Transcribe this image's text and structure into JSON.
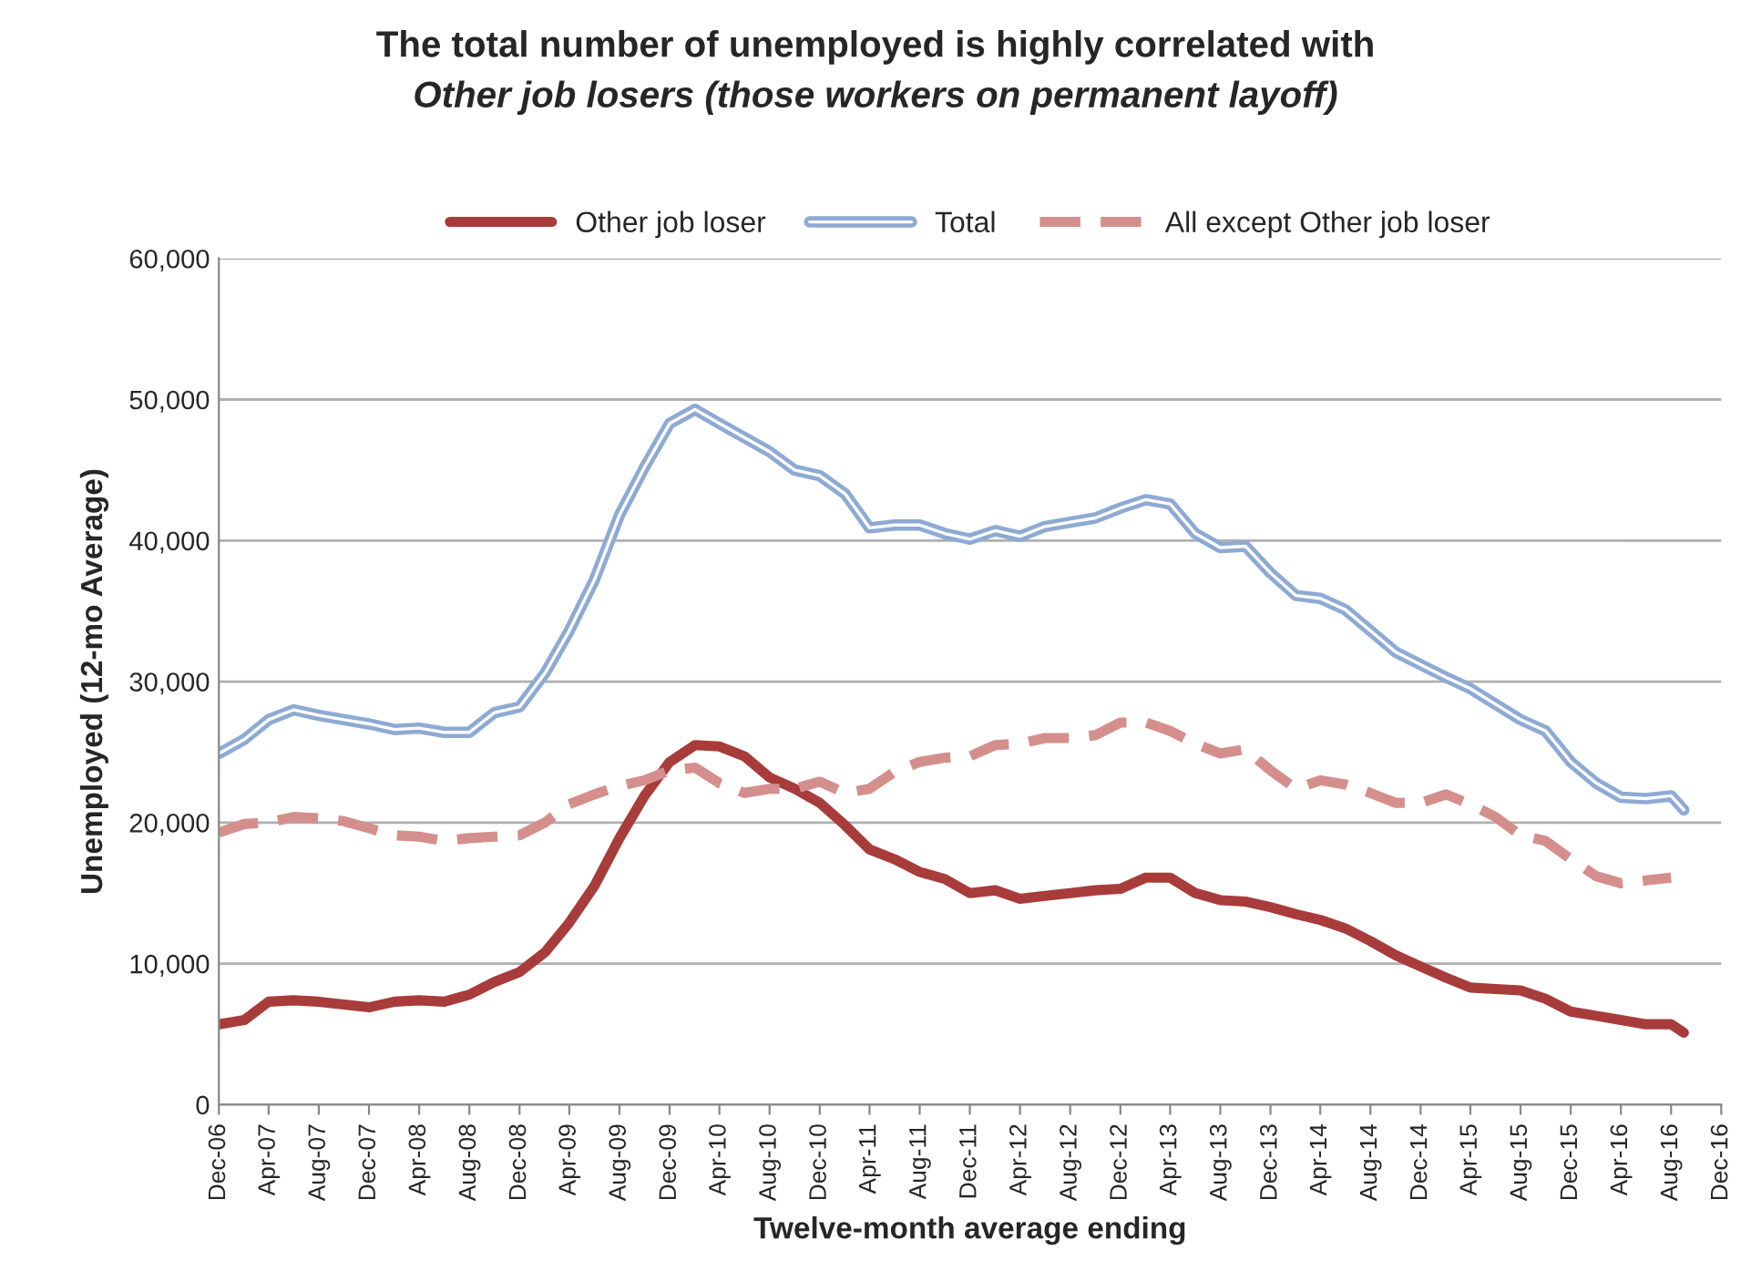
{
  "chart_data": {
    "type": "line",
    "title": "The total number of unemployed is highly correlated with",
    "subtitle": "Other job losers (those workers on permanent layoff)",
    "xlabel": "Twelve-month average ending",
    "ylabel": "Unemployed (12-mo Average)",
    "series": [
      {
        "name": "Other job loser",
        "color": "#a83c3a",
        "line_style": "solid",
        "x": [
          "2006-12",
          "2007-02",
          "2007-04",
          "2007-06",
          "2007-08",
          "2007-10",
          "2007-12",
          "2008-02",
          "2008-04",
          "2008-06",
          "2008-08",
          "2008-10",
          "2008-12",
          "2009-02",
          "2009-04",
          "2009-06",
          "2009-08",
          "2009-10",
          "2009-12",
          "2010-02",
          "2010-04",
          "2010-06",
          "2010-08",
          "2010-10",
          "2010-12",
          "2011-02",
          "2011-04",
          "2011-06",
          "2011-08",
          "2011-10",
          "2011-12",
          "2012-02",
          "2012-04",
          "2012-06",
          "2012-08",
          "2012-10",
          "2012-12",
          "2013-02",
          "2013-04",
          "2013-06",
          "2013-08",
          "2013-10",
          "2013-12",
          "2014-02",
          "2014-04",
          "2014-06",
          "2014-08",
          "2014-10",
          "2014-12",
          "2015-02",
          "2015-04",
          "2015-06",
          "2015-08",
          "2015-10",
          "2015-12",
          "2016-02",
          "2016-04",
          "2016-06",
          "2016-08",
          "2016-09"
        ],
        "values": [
          5700,
          6000,
          7300,
          7400,
          7300,
          7100,
          6900,
          7300,
          7400,
          7300,
          7800,
          8700,
          9400,
          10800,
          12900,
          15500,
          18900,
          21900,
          24300,
          25500,
          25400,
          24700,
          23200,
          22400,
          21400,
          19800,
          18100,
          17400,
          16500,
          16000,
          15000,
          15200,
          14600,
          14800,
          15000,
          15200,
          15300,
          16100,
          16100,
          15000,
          14500,
          14400,
          14000,
          13500,
          13100,
          12500,
          11600,
          10600,
          9800,
          9000,
          8300,
          8200,
          8100,
          7500,
          6600,
          6300,
          6000,
          5700,
          5700,
          5100
        ]
      },
      {
        "name": "Total",
        "color": "#8eaad4",
        "line_style": "solid",
        "x": [
          "2006-12",
          "2007-02",
          "2007-04",
          "2007-06",
          "2007-08",
          "2007-10",
          "2007-12",
          "2008-02",
          "2008-04",
          "2008-06",
          "2008-08",
          "2008-10",
          "2008-12",
          "2009-02",
          "2009-04",
          "2009-06",
          "2009-08",
          "2009-10",
          "2009-12",
          "2010-02",
          "2010-04",
          "2010-06",
          "2010-08",
          "2010-10",
          "2010-12",
          "2011-02",
          "2011-04",
          "2011-06",
          "2011-08",
          "2011-10",
          "2011-12",
          "2012-02",
          "2012-04",
          "2012-06",
          "2012-08",
          "2012-10",
          "2012-12",
          "2013-02",
          "2013-04",
          "2013-06",
          "2013-08",
          "2013-10",
          "2013-12",
          "2014-02",
          "2014-04",
          "2014-06",
          "2014-08",
          "2014-10",
          "2014-12",
          "2015-02",
          "2015-04",
          "2015-06",
          "2015-08",
          "2015-10",
          "2015-12",
          "2016-02",
          "2016-04",
          "2016-06",
          "2016-08",
          "2016-09"
        ],
        "values": [
          24900,
          25900,
          27300,
          28000,
          27600,
          27300,
          27000,
          26600,
          26700,
          26400,
          26400,
          27800,
          28200,
          30600,
          33600,
          37200,
          41800,
          45200,
          48300,
          49300,
          48300,
          47300,
          46300,
          45000,
          44600,
          43300,
          40900,
          41100,
          41100,
          40500,
          40100,
          40700,
          40300,
          41000,
          41300,
          41600,
          42300,
          42900,
          42600,
          40500,
          39500,
          39600,
          37700,
          36100,
          35900,
          35100,
          33600,
          32100,
          31200,
          30300,
          29500,
          28400,
          27300,
          26500,
          24300,
          22800,
          21800,
          21700,
          21900,
          20900
        ]
      },
      {
        "name": "All except Other job loser",
        "color": "#d48f8d",
        "line_style": "dashed",
        "x": [
          "2006-12",
          "2007-02",
          "2007-04",
          "2007-06",
          "2007-08",
          "2007-10",
          "2007-12",
          "2008-02",
          "2008-04",
          "2008-06",
          "2008-08",
          "2008-10",
          "2008-12",
          "2009-02",
          "2009-04",
          "2009-06",
          "2009-08",
          "2009-10",
          "2009-12",
          "2010-02",
          "2010-04",
          "2010-06",
          "2010-08",
          "2010-10",
          "2010-12",
          "2011-02",
          "2011-04",
          "2011-06",
          "2011-08",
          "2011-10",
          "2011-12",
          "2012-02",
          "2012-04",
          "2012-06",
          "2012-08",
          "2012-10",
          "2012-12",
          "2013-02",
          "2013-04",
          "2013-06",
          "2013-08",
          "2013-10",
          "2013-12",
          "2014-02",
          "2014-04",
          "2014-06",
          "2014-08",
          "2014-10",
          "2014-12",
          "2015-02",
          "2015-04",
          "2015-06",
          "2015-08",
          "2015-10",
          "2015-12",
          "2016-02",
          "2016-04",
          "2016-06",
          "2016-08"
        ],
        "values": [
          19300,
          19900,
          20000,
          20400,
          20300,
          20100,
          19600,
          19100,
          19000,
          18700,
          18900,
          19000,
          19100,
          20000,
          21300,
          22000,
          22600,
          23000,
          23700,
          23900,
          22800,
          22100,
          22400,
          22400,
          22900,
          22100,
          22400,
          23600,
          24300,
          24600,
          24700,
          25500,
          25600,
          26000,
          26000,
          26200,
          27100,
          27100,
          26500,
          25600,
          24900,
          25200,
          23700,
          22400,
          23000,
          22700,
          22100,
          21400,
          21400,
          22000,
          21300,
          20400,
          19100,
          18700,
          17400,
          16200,
          15700,
          15900,
          16100
        ]
      }
    ],
    "xlim": [
      "2006-12",
      "2016-12"
    ],
    "xticks": [
      {
        "value": "2006-12",
        "label": "Dec-06"
      },
      {
        "value": "2007-04",
        "label": "Apr-07"
      },
      {
        "value": "2007-08",
        "label": "Aug-07"
      },
      {
        "value": "2007-12",
        "label": "Dec-07"
      },
      {
        "value": "2008-04",
        "label": "Apr-08"
      },
      {
        "value": "2008-08",
        "label": "Aug-08"
      },
      {
        "value": "2008-12",
        "label": "Dec-08"
      },
      {
        "value": "2009-04",
        "label": "Apr-09"
      },
      {
        "value": "2009-08",
        "label": "Aug-09"
      },
      {
        "value": "2009-12",
        "label": "Dec-09"
      },
      {
        "value": "2010-04",
        "label": "Apr-10"
      },
      {
        "value": "2010-08",
        "label": "Aug-10"
      },
      {
        "value": "2010-12",
        "label": "Dec-10"
      },
      {
        "value": "2011-04",
        "label": "Apr-11"
      },
      {
        "value": "2011-08",
        "label": "Aug-11"
      },
      {
        "value": "2011-12",
        "label": "Dec-11"
      },
      {
        "value": "2012-04",
        "label": "Apr-12"
      },
      {
        "value": "2012-08",
        "label": "Aug-12"
      },
      {
        "value": "2012-12",
        "label": "Dec-12"
      },
      {
        "value": "2013-04",
        "label": "Apr-13"
      },
      {
        "value": "2013-08",
        "label": "Aug-13"
      },
      {
        "value": "2013-12",
        "label": "Dec-13"
      },
      {
        "value": "2014-04",
        "label": "Apr-14"
      },
      {
        "value": "2014-08",
        "label": "Aug-14"
      },
      {
        "value": "2014-12",
        "label": "Dec-14"
      },
      {
        "value": "2015-04",
        "label": "Apr-15"
      },
      {
        "value": "2015-08",
        "label": "Aug-15"
      },
      {
        "value": "2015-12",
        "label": "Dec-15"
      },
      {
        "value": "2016-04",
        "label": "Apr-16"
      },
      {
        "value": "2016-08",
        "label": "Aug-16"
      },
      {
        "value": "2016-12",
        "label": "Dec-16"
      }
    ],
    "ylim": [
      0,
      60000
    ],
    "yticks": [
      {
        "value": 0,
        "label": "0"
      },
      {
        "value": 10000,
        "label": "10,000"
      },
      {
        "value": 20000,
        "label": "20,000"
      },
      {
        "value": 30000,
        "label": "30,000"
      },
      {
        "value": 40000,
        "label": "40,000"
      },
      {
        "value": 50000,
        "label": "50,000"
      },
      {
        "value": 60000,
        "label": "60,000"
      }
    ],
    "grid": "y",
    "legend": "top",
    "marker": "none"
  }
}
